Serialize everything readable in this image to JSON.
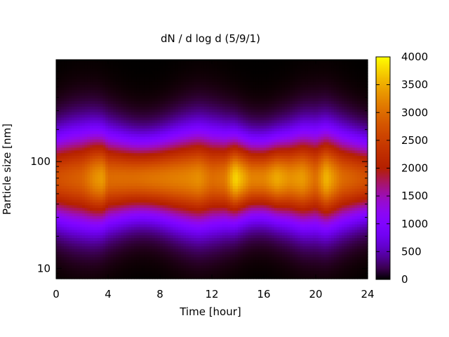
{
  "chart_data": {
    "type": "heatmap",
    "title": "dN / d log d (5/9/1)",
    "xlabel": "Time [hour]",
    "ylabel": "Particle size [nm]",
    "xlim": [
      0,
      24
    ],
    "ylim": [
      8,
      900
    ],
    "yscale": "log",
    "x_ticks": [
      0,
      4,
      8,
      12,
      16,
      20,
      24
    ],
    "y_ticks": [
      10,
      100
    ],
    "colorbar": {
      "range": [
        0,
        4000
      ],
      "ticks": [
        0,
        500,
        1000,
        1500,
        2000,
        2500,
        3000,
        3500,
        4000
      ],
      "palette": "gnuplot (black-purple-red-orange-yellow)"
    },
    "profile": {
      "peak_diameter_nm": 70,
      "description_values": {
        "hours": [
          0,
          2,
          3,
          3.6,
          4,
          6,
          8,
          10,
          11,
          12,
          13,
          13.8,
          15,
          16,
          17,
          18,
          19,
          20,
          20.8,
          22,
          24
        ],
        "peak_concentration": [
          2700,
          2900,
          3300,
          3400,
          3000,
          3000,
          3100,
          3200,
          3300,
          3000,
          3100,
          3800,
          3200,
          3200,
          3500,
          3300,
          3400,
          3000,
          3600,
          3000,
          2700
        ]
      }
    }
  }
}
